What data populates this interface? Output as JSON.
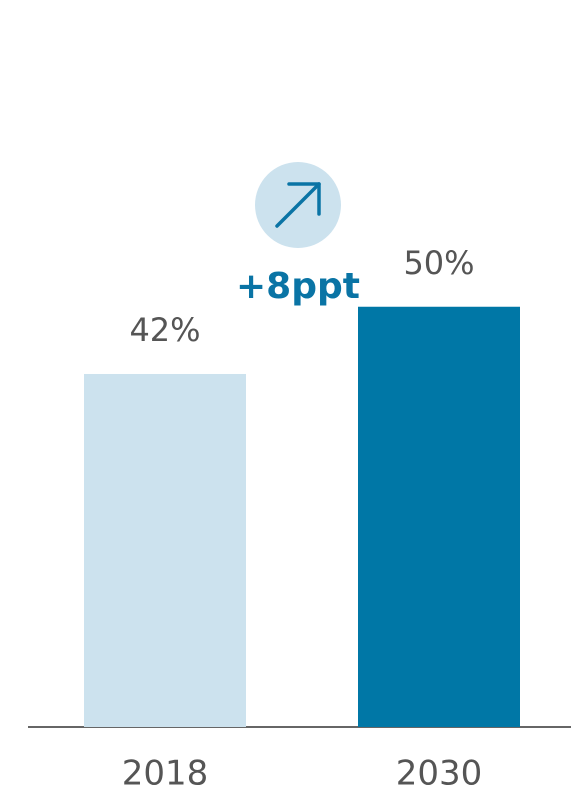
{
  "chart_data": {
    "type": "bar",
    "categories": [
      "2018",
      "2030"
    ],
    "values": [
      42,
      50
    ],
    "value_labels": [
      "42%",
      "50%"
    ],
    "colors": [
      "#cce2ee",
      "#0077a6"
    ],
    "annotation": "+8ppt"
  }
}
